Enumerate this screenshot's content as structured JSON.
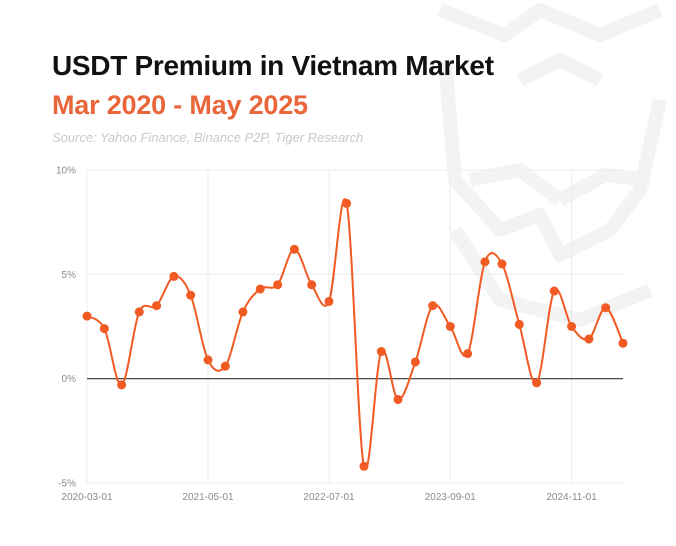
{
  "title": "USDT Premium in Vietnam Market",
  "subtitle": "Mar 2020 - May 2025",
  "source": "Source: Yahoo Finance, Binance P2P, Tiger Research",
  "colors": {
    "line": "#f15a22",
    "subtitle": "#e8663a",
    "zero_line": "#333333",
    "grid": "#ececec",
    "watermark": "#f3f3f3"
  },
  "chart_data": {
    "type": "line",
    "x": [
      "2020-03-01",
      "2020-05-01",
      "2020-07-01",
      "2020-09-01",
      "2020-11-01",
      "2021-01-01",
      "2021-03-01",
      "2021-05-01",
      "2021-07-01",
      "2021-09-01",
      "2021-11-01",
      "2022-01-01",
      "2022-03-01",
      "2022-05-01",
      "2022-07-01",
      "2022-09-01",
      "2022-11-01",
      "2023-01-01",
      "2023-03-01",
      "2023-05-01",
      "2023-07-01",
      "2023-09-01",
      "2023-11-01",
      "2024-01-01",
      "2024-03-01",
      "2024-05-01",
      "2024-07-01",
      "2024-09-01",
      "2024-11-01",
      "2025-01-01",
      "2025-03-01",
      "2025-05-01"
    ],
    "series": [
      {
        "values": [
          3.0,
          2.4,
          -0.3,
          3.2,
          3.5,
          4.9,
          4.0,
          0.9,
          0.6,
          3.2,
          4.3,
          4.5,
          6.2,
          4.5,
          3.7,
          8.4,
          -4.2,
          1.3,
          -1.0,
          0.8,
          3.5,
          2.5,
          1.2,
          5.6,
          5.5,
          2.6,
          -0.2,
          4.2,
          2.5,
          1.9,
          3.4,
          1.7
        ]
      }
    ],
    "y_unit": "%",
    "ylim": [
      -5,
      10
    ],
    "y_ticks": [
      "10%",
      "5%",
      "0%",
      "-5%"
    ],
    "x_ticks": [
      "2020-03-01",
      "2021-05-01",
      "2022-07-01",
      "2023-09-01",
      "2024-11-01"
    ],
    "grid": true,
    "legend": "none"
  }
}
